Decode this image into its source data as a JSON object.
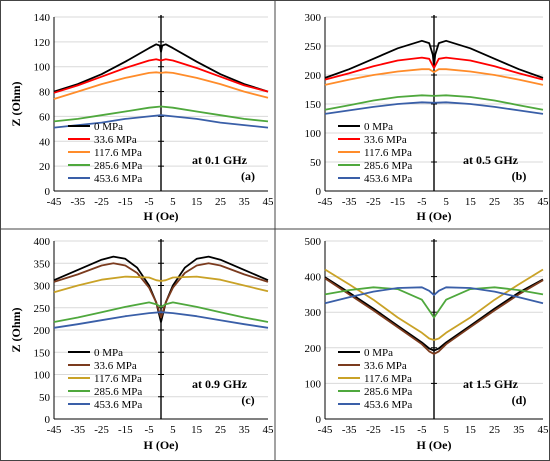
{
  "legend_names": [
    "0 MPa",
    "33.6 MPa",
    "117.6 MPa",
    "285.6 MPa",
    "453.6 MPa"
  ],
  "chart_data": [
    {
      "type": "line",
      "panel_label": "(a)",
      "annotation": "at 0.1 GHz",
      "xlabel": "H (Oe)",
      "ylabel": "Z (Ohm)",
      "xlim": [
        -45,
        45
      ],
      "ylim": [
        0,
        140
      ],
      "xticks": [
        -45,
        -35,
        -25,
        -15,
        -5,
        5,
        15,
        25,
        35,
        45
      ],
      "yticks": [
        0,
        20,
        40,
        60,
        80,
        100,
        120,
        140
      ],
      "legend_position": "bottom-left",
      "series": [
        {
          "name": "0 MPa",
          "color": "#000000",
          "x": [
            -45,
            -35,
            -25,
            -15,
            -5,
            -2,
            -0.5,
            0,
            0.5,
            2,
            5,
            15,
            25,
            35,
            45
          ],
          "y": [
            80,
            86,
            94,
            104,
            115,
            118,
            117,
            112,
            117,
            118,
            115,
            104,
            94,
            86,
            80
          ]
        },
        {
          "name": "33.6 MPa",
          "color": "#ff0000",
          "x": [
            -45,
            -35,
            -25,
            -15,
            -5,
            -2,
            0,
            2,
            5,
            15,
            25,
            35,
            45
          ],
          "y": [
            79,
            85,
            92,
            99,
            105,
            106,
            105,
            106,
            105,
            99,
            92,
            85,
            80
          ]
        },
        {
          "name": "117.6 MPa",
          "color": "#ff8c2a",
          "x": [
            -45,
            -35,
            -25,
            -15,
            -5,
            -2,
            0,
            2,
            5,
            15,
            25,
            35,
            45
          ],
          "y": [
            74,
            80,
            86,
            91,
            95,
            95.5,
            95,
            95.5,
            95,
            91,
            86,
            80,
            75
          ]
        },
        {
          "name": "285.6 MPa",
          "color": "#4fa83d",
          "x": [
            -45,
            -35,
            -25,
            -15,
            -5,
            0,
            5,
            15,
            25,
            35,
            45
          ],
          "y": [
            56,
            58,
            61,
            64,
            67,
            68,
            67,
            64,
            61,
            58,
            56
          ]
        },
        {
          "name": "453.6 MPa",
          "color": "#3a5fa8",
          "x": [
            -45,
            -35,
            -25,
            -15,
            -5,
            0,
            5,
            15,
            25,
            35,
            45
          ],
          "y": [
            51,
            53,
            55,
            58,
            60,
            61,
            60,
            58,
            55,
            53,
            51
          ]
        }
      ]
    },
    {
      "type": "line",
      "panel_label": "(b)",
      "annotation": "at 0.5 GHz",
      "xlabel": "H (Oe)",
      "ylabel": "",
      "xlim": [
        -45,
        45
      ],
      "ylim": [
        0,
        300
      ],
      "xticks": [
        -45,
        -35,
        -25,
        -15,
        -5,
        5,
        15,
        25,
        35,
        45
      ],
      "yticks": [
        0,
        50,
        100,
        150,
        200,
        250,
        300
      ],
      "legend_position": "bottom-left",
      "series": [
        {
          "name": "0 MPa",
          "color": "#000000",
          "x": [
            -45,
            -35,
            -25,
            -15,
            -5,
            -2,
            -0.5,
            0,
            0.5,
            2,
            5,
            15,
            25,
            35,
            45
          ],
          "y": [
            195,
            210,
            228,
            246,
            259,
            255,
            235,
            215,
            235,
            255,
            259,
            246,
            228,
            210,
            195
          ]
        },
        {
          "name": "33.6 MPa",
          "color": "#ff0000",
          "x": [
            -45,
            -35,
            -25,
            -15,
            -5,
            -2,
            0,
            2,
            5,
            15,
            25,
            35,
            45
          ],
          "y": [
            192,
            203,
            215,
            225,
            230,
            228,
            212,
            228,
            230,
            225,
            215,
            203,
            192
          ]
        },
        {
          "name": "117.6 MPa",
          "color": "#ff8c2a",
          "x": [
            -45,
            -35,
            -25,
            -15,
            -5,
            -2,
            0,
            2,
            5,
            15,
            25,
            35,
            45
          ],
          "y": [
            183,
            192,
            200,
            206,
            210,
            210,
            205,
            210,
            210,
            206,
            200,
            192,
            183
          ]
        },
        {
          "name": "285.6 MPa",
          "color": "#4fa83d",
          "x": [
            -45,
            -35,
            -25,
            -15,
            -5,
            0,
            5,
            15,
            25,
            35,
            45
          ],
          "y": [
            140,
            148,
            156,
            162,
            165,
            164,
            165,
            162,
            156,
            148,
            140
          ]
        },
        {
          "name": "453.6 MPa",
          "color": "#3a5fa8",
          "x": [
            -45,
            -35,
            -25,
            -15,
            -5,
            0,
            5,
            15,
            25,
            35,
            45
          ],
          "y": [
            133,
            139,
            145,
            150,
            153,
            152,
            153,
            150,
            145,
            139,
            133
          ]
        }
      ]
    },
    {
      "type": "line",
      "panel_label": "(c)",
      "annotation": "at 0.9 GHz",
      "xlabel": "H (Oe)",
      "ylabel": "Z (Ohm)",
      "xlim": [
        -45,
        45
      ],
      "ylim": [
        0,
        400
      ],
      "xticks": [
        -45,
        -35,
        -25,
        -15,
        -5,
        5,
        15,
        25,
        35,
        45
      ],
      "yticks": [
        0,
        50,
        100,
        150,
        200,
        250,
        300,
        350,
        400
      ],
      "legend_position": "bottom-left",
      "series": [
        {
          "name": "0 MPa",
          "color": "#000000",
          "x": [
            -45,
            -35,
            -25,
            -20,
            -15,
            -10,
            -5,
            -2,
            0,
            2,
            5,
            10,
            15,
            20,
            25,
            35,
            45
          ],
          "y": [
            312,
            335,
            358,
            365,
            360,
            340,
            300,
            262,
            218,
            262,
            300,
            340,
            360,
            365,
            358,
            335,
            312
          ]
        },
        {
          "name": "33.6 MPa",
          "color": "#7b3b1e",
          "x": [
            -45,
            -35,
            -25,
            -20,
            -15,
            -10,
            -5,
            -2,
            0,
            2,
            5,
            10,
            15,
            20,
            25,
            35,
            45
          ],
          "y": [
            308,
            325,
            345,
            350,
            345,
            328,
            295,
            262,
            228,
            262,
            295,
            328,
            345,
            350,
            345,
            325,
            308
          ]
        },
        {
          "name": "117.6 MPa",
          "color": "#c9a227",
          "x": [
            -45,
            -35,
            -25,
            -15,
            -5,
            -2,
            0,
            2,
            5,
            15,
            25,
            35,
            45
          ],
          "y": [
            285,
            300,
            313,
            320,
            318,
            312,
            310,
            312,
            318,
            320,
            313,
            300,
            287
          ]
        },
        {
          "name": "285.6 MPa",
          "color": "#4fa83d",
          "x": [
            -45,
            -35,
            -25,
            -15,
            -5,
            -2,
            0,
            2,
            5,
            15,
            25,
            35,
            45
          ],
          "y": [
            218,
            228,
            240,
            252,
            262,
            258,
            252,
            258,
            262,
            252,
            240,
            228,
            218
          ]
        },
        {
          "name": "453.6 MPa",
          "color": "#3a5fa8",
          "x": [
            -45,
            -35,
            -25,
            -15,
            -5,
            0,
            5,
            15,
            25,
            35,
            45
          ],
          "y": [
            205,
            213,
            222,
            231,
            238,
            240,
            238,
            231,
            222,
            213,
            205
          ]
        }
      ]
    },
    {
      "type": "line",
      "panel_label": "(d)",
      "annotation": "at 1.5 GHz",
      "xlabel": "H (Oe)",
      "ylabel": "",
      "xlim": [
        -45,
        45
      ],
      "ylim": [
        0,
        500
      ],
      "xticks": [
        -45,
        -35,
        -25,
        -15,
        -5,
        5,
        15,
        25,
        35,
        45
      ],
      "yticks": [
        0,
        100,
        200,
        300,
        400,
        500
      ],
      "legend_position": "bottom-left",
      "series": [
        {
          "name": "0 MPa",
          "color": "#000000",
          "x": [
            -45,
            -35,
            -25,
            -15,
            -5,
            -2,
            0,
            2,
            5,
            15,
            25,
            35,
            45
          ],
          "y": [
            398,
            355,
            310,
            262,
            215,
            198,
            192,
            198,
            215,
            262,
            310,
            355,
            392
          ]
        },
        {
          "name": "33.6 MPa",
          "color": "#7b3b1e",
          "x": [
            -45,
            -35,
            -25,
            -15,
            -5,
            -2,
            0,
            2,
            5,
            15,
            25,
            35,
            45
          ],
          "y": [
            395,
            350,
            305,
            258,
            210,
            190,
            183,
            190,
            210,
            258,
            305,
            350,
            390
          ]
        },
        {
          "name": "117.6 MPa",
          "color": "#c9a227",
          "x": [
            -45,
            -35,
            -25,
            -15,
            -5,
            -2,
            0,
            2,
            5,
            15,
            25,
            35,
            45
          ],
          "y": [
            420,
            378,
            335,
            285,
            242,
            226,
            222,
            226,
            242,
            285,
            335,
            378,
            420
          ]
        },
        {
          "name": "285.6 MPa",
          "color": "#4fa83d",
          "x": [
            -45,
            -35,
            -25,
            -15,
            -5,
            -2,
            0,
            2,
            5,
            15,
            25,
            35,
            45
          ],
          "y": [
            350,
            362,
            370,
            365,
            335,
            305,
            285,
            305,
            335,
            365,
            370,
            362,
            350
          ]
        },
        {
          "name": "453.6 MPa",
          "color": "#3a5fa8",
          "x": [
            -45,
            -35,
            -25,
            -15,
            -5,
            -2,
            0,
            2,
            5,
            15,
            25,
            35,
            45
          ],
          "y": [
            325,
            342,
            358,
            368,
            370,
            360,
            348,
            360,
            370,
            368,
            358,
            342,
            325
          ]
        }
      ]
    }
  ]
}
